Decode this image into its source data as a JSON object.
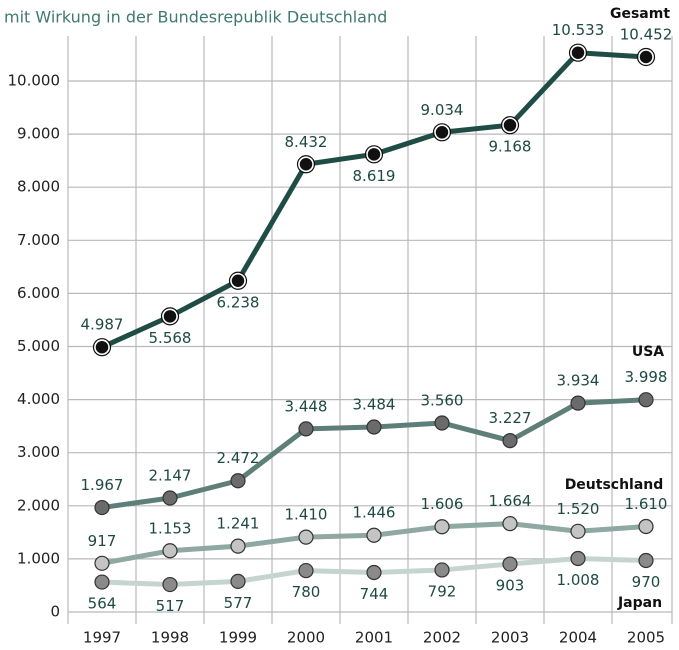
{
  "chart_data": {
    "type": "line",
    "subtitle": "mit Wirkung in der Bundesrepublik Deutschland",
    "categories": [
      "1997",
      "1998",
      "1999",
      "2000",
      "2001",
      "2002",
      "2003",
      "2004",
      "2005"
    ],
    "series": [
      {
        "name": "Gesamt",
        "color": "#1f4d45",
        "marker_color": "#111111",
        "values": [
          4987,
          5568,
          6238,
          8432,
          8619,
          9034,
          9168,
          10533,
          10452
        ],
        "value_labels": [
          "4.987",
          "5.568",
          "6.238",
          "8.432",
          "8.619",
          "9.034",
          "9.168",
          "10.533",
          "10.452"
        ]
      },
      {
        "name": "USA",
        "color": "#5e7f78",
        "marker_color": "#6b6b6b",
        "values": [
          1967,
          2147,
          2472,
          3448,
          3484,
          3560,
          3227,
          3934,
          3998
        ],
        "value_labels": [
          "1.967",
          "2.147",
          "2.472",
          "3.448",
          "3.484",
          "3.560",
          "3.227",
          "3.934",
          "3.998"
        ]
      },
      {
        "name": "Deutschland",
        "color": "#8fa8a2",
        "marker_color": "#c4c4c4",
        "values": [
          917,
          1153,
          1241,
          1410,
          1446,
          1606,
          1664,
          1520,
          1610
        ],
        "value_labels": [
          "917",
          "1.153",
          "1.241",
          "1.410",
          "1.446",
          "1.606",
          "1.664",
          "1.520",
          "1.610"
        ]
      },
      {
        "name": "Japan",
        "color": "#c6d4d0",
        "marker_color": "#8a8a8a",
        "values": [
          564,
          517,
          577,
          780,
          744,
          792,
          903,
          1008,
          970
        ],
        "value_labels": [
          "564",
          "517",
          "577",
          "780",
          "744",
          "792",
          "903",
          "1.008",
          "970"
        ]
      }
    ],
    "ylim": [
      0,
      10000
    ],
    "yticks": [
      0,
      {
        "value": 1000,
        "label": "1.000"
      },
      {
        "value": 2000,
        "label": "2.000"
      },
      {
        "value": 3000,
        "label": "3.000"
      },
      {
        "value": 4000,
        "label": "4.000"
      },
      {
        "value": 5000,
        "label": "5.000"
      },
      {
        "value": 6000,
        "label": "6.000"
      },
      {
        "value": 7000,
        "label": "7.000"
      },
      {
        "value": 8000,
        "label": "8.000"
      },
      {
        "value": 9000,
        "label": "9.000"
      },
      {
        "value": 10000,
        "label": "10.000"
      }
    ],
    "grid": true
  }
}
